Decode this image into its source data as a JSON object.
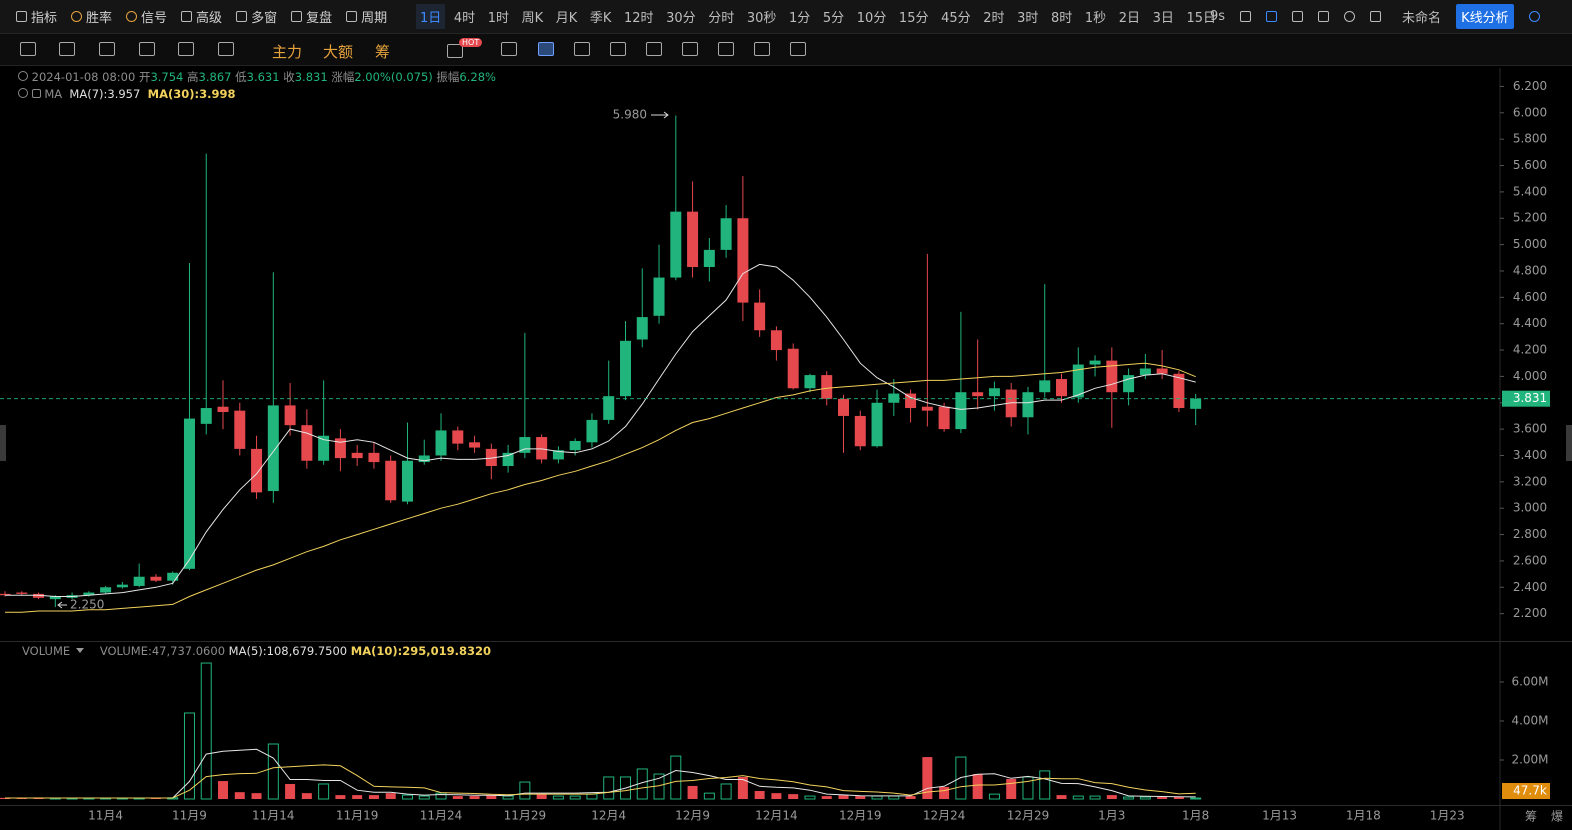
{
  "toolbar": {
    "left": [
      "指标",
      "胜率",
      "信号",
      "高级",
      "多窗",
      "复盘",
      "周期"
    ],
    "periods": [
      "1日",
      "4时",
      "1时",
      "周K",
      "月K",
      "季K",
      "12时",
      "30分",
      "分时",
      "30秒",
      "1分",
      "5分",
      "10分",
      "15分",
      "45分",
      "2时",
      "3时",
      "8时",
      "1秒",
      "2日",
      "3日",
      "15日"
    ],
    "refresh": "9s",
    "layout": "未命名",
    "analysis": "K线分析"
  },
  "drawing_bar": {
    "labels": [
      "主力",
      "大额",
      "筹"
    ],
    "badge": "HOT"
  },
  "corner": [
    "筹",
    "爆"
  ],
  "chart_data": {
    "type": "candlestick",
    "info": {
      "time": "2024-01-08 08:00",
      "open_label": "开",
      "high_label": "高",
      "low_label": "低",
      "close_label": "收",
      "change_label": "涨幅",
      "change": "2.00%(0.075)",
      "amplitude_label": "振幅",
      "amplitude": "6.28%"
    },
    "ma_title": "MA",
    "annotations": {
      "max": "5.980",
      "min": "2.250"
    },
    "up_color": "#21b57d",
    "down_color": "#e5484d",
    "categories": [
      null,
      null,
      null,
      null,
      null,
      null,
      "11月4",
      null,
      null,
      null,
      null,
      "11月9",
      null,
      null,
      null,
      null,
      "11月14",
      null,
      null,
      null,
      null,
      "11月19",
      null,
      null,
      null,
      null,
      "11月24",
      null,
      null,
      null,
      null,
      "11月29",
      null,
      null,
      null,
      null,
      "12月4",
      null,
      null,
      null,
      null,
      "12月9",
      null,
      null,
      null,
      null,
      "12月14",
      null,
      null,
      null,
      null,
      "12月19",
      null,
      null,
      null,
      null,
      "12月24",
      null,
      null,
      null,
      null,
      "12月29",
      null,
      null,
      null,
      null,
      "1月3",
      null,
      null,
      null,
      null,
      "1月8",
      null,
      null,
      null,
      null,
      "1月13",
      null,
      null,
      null,
      null,
      "1月18",
      null,
      null,
      null,
      null,
      "1月23",
      null,
      null
    ],
    "open": [
      2.35,
      2.36,
      2.35,
      2.31,
      2.32,
      2.34,
      2.36,
      2.4,
      2.41,
      2.48,
      2.45,
      2.54,
      3.64,
      3.77,
      3.74,
      3.45,
      3.13,
      3.78,
      3.63,
      3.36,
      3.53,
      3.42,
      3.42,
      3.36,
      3.05,
      3.35,
      3.4,
      3.59,
      3.5,
      3.45,
      3.32,
      3.42,
      3.54,
      3.37,
      3.44,
      3.5,
      3.67,
      3.85,
      4.28,
      4.46,
      4.75,
      5.25,
      4.83,
      4.96,
      5.2,
      4.56,
      4.35,
      4.21,
      3.91,
      4.01,
      3.83,
      3.7,
      3.47,
      3.8,
      3.87,
      3.77,
      3.77,
      3.6,
      3.88,
      3.85,
      3.9,
      3.69,
      3.88,
      3.98,
      3.84,
      4.09,
      4.12,
      3.88,
      4.01,
      4.06,
      4.02,
      3.754,
      null,
      null,
      null,
      null,
      null,
      null,
      null,
      null,
      null,
      null,
      null,
      null,
      null,
      null,
      null,
      null,
      null
    ],
    "high": [
      2.37,
      2.37,
      2.36,
      2.34,
      2.36,
      2.37,
      2.41,
      2.44,
      2.58,
      2.5,
      2.52,
      4.86,
      5.69,
      3.97,
      3.8,
      3.55,
      4.79,
      3.95,
      3.75,
      3.97,
      3.6,
      3.48,
      3.5,
      3.4,
      3.65,
      3.52,
      3.72,
      3.62,
      3.55,
      3.49,
      3.48,
      4.33,
      3.56,
      3.47,
      3.53,
      3.72,
      4.12,
      4.42,
      4.82,
      5.0,
      5.98,
      5.48,
      5.05,
      5.3,
      5.52,
      4.66,
      4.38,
      4.25,
      4.02,
      4.04,
      3.86,
      3.74,
      3.9,
      3.98,
      3.9,
      4.93,
      3.8,
      4.49,
      4.28,
      3.96,
      3.95,
      3.92,
      4.7,
      4.02,
      4.22,
      4.16,
      4.22,
      4.06,
      4.17,
      4.2,
      4.04,
      3.867,
      null,
      null,
      null,
      null,
      null,
      null,
      null,
      null,
      null,
      null,
      null,
      null,
      null,
      null,
      null,
      null,
      null
    ],
    "low": [
      2.33,
      2.34,
      2.31,
      2.25,
      2.31,
      2.33,
      2.35,
      2.39,
      2.4,
      2.44,
      2.42,
      2.53,
      3.56,
      3.6,
      3.4,
      3.07,
      3.04,
      3.55,
      3.3,
      3.33,
      3.28,
      3.32,
      3.3,
      3.04,
      3.03,
      3.33,
      3.36,
      3.44,
      3.42,
      3.22,
      3.27,
      3.38,
      3.34,
      3.34,
      3.4,
      3.46,
      3.64,
      3.82,
      4.22,
      4.4,
      4.73,
      4.75,
      4.72,
      4.9,
      4.42,
      4.3,
      4.12,
      3.9,
      3.88,
      3.78,
      3.42,
      3.44,
      3.46,
      3.7,
      3.65,
      3.62,
      3.58,
      3.57,
      3.75,
      3.74,
      3.62,
      3.56,
      3.84,
      3.8,
      3.8,
      4.0,
      3.61,
      3.78,
      3.98,
      3.98,
      3.73,
      3.631,
      null,
      null,
      null,
      null,
      null,
      null,
      null,
      null,
      null,
      null,
      null,
      null,
      null,
      null,
      null,
      null,
      null
    ],
    "close": [
      2.34,
      2.35,
      2.32,
      2.33,
      2.34,
      2.36,
      2.4,
      2.42,
      2.48,
      2.45,
      2.51,
      3.68,
      3.76,
      3.73,
      3.45,
      3.12,
      3.78,
      3.63,
      3.36,
      3.55,
      3.38,
      3.38,
      3.35,
      3.06,
      3.36,
      3.4,
      3.59,
      3.49,
      3.46,
      3.32,
      3.42,
      3.54,
      3.37,
      3.44,
      3.51,
      3.67,
      3.85,
      4.27,
      4.45,
      4.75,
      5.25,
      4.83,
      4.96,
      5.2,
      4.56,
      4.35,
      4.2,
      3.91,
      4.01,
      3.83,
      3.7,
      3.47,
      3.8,
      3.87,
      3.76,
      3.74,
      3.6,
      3.88,
      3.85,
      3.91,
      3.69,
      3.88,
      3.97,
      3.85,
      4.09,
      4.12,
      3.88,
      4.01,
      4.06,
      4.02,
      3.76,
      3.831,
      null,
      null,
      null,
      null,
      null,
      null,
      null,
      null,
      null,
      null,
      null,
      null,
      null,
      null,
      null,
      null,
      null
    ],
    "ma_series": [
      {
        "name": "MA(7):",
        "color": "#e6e6e6",
        "values": [
          2.34,
          2.34,
          2.34,
          2.33,
          2.33,
          2.34,
          2.35,
          2.36,
          2.38,
          2.4,
          2.43,
          2.61,
          2.82,
          2.99,
          3.14,
          3.26,
          3.43,
          3.6,
          3.57,
          3.52,
          3.5,
          3.52,
          3.5,
          3.44,
          3.38,
          3.36,
          3.38,
          3.37,
          3.37,
          3.38,
          3.4,
          3.45,
          3.45,
          3.43,
          3.42,
          3.45,
          3.51,
          3.62,
          3.79,
          3.98,
          4.17,
          4.34,
          4.46,
          4.58,
          4.78,
          4.85,
          4.83,
          4.73,
          4.6,
          4.45,
          4.28,
          4.1,
          3.99,
          3.92,
          3.84,
          3.8,
          3.77,
          3.75,
          3.76,
          3.78,
          3.8,
          3.8,
          3.82,
          3.82,
          3.86,
          3.91,
          3.94,
          3.98,
          4.01,
          4.02,
          3.99,
          3.957,
          null,
          null,
          null,
          null,
          null,
          null,
          null,
          null,
          null,
          null,
          null,
          null,
          null,
          null,
          null,
          null,
          null
        ]
      },
      {
        "name": "MA(30):",
        "color": "#f2d25c",
        "values": [
          2.21,
          2.21,
          2.22,
          2.22,
          2.22,
          2.23,
          2.23,
          2.24,
          2.25,
          2.26,
          2.27,
          2.33,
          2.38,
          2.43,
          2.48,
          2.53,
          2.57,
          2.62,
          2.67,
          2.71,
          2.76,
          2.8,
          2.84,
          2.88,
          2.92,
          2.96,
          3.0,
          3.03,
          3.07,
          3.11,
          3.14,
          3.18,
          3.21,
          3.25,
          3.28,
          3.32,
          3.36,
          3.41,
          3.46,
          3.52,
          3.59,
          3.65,
          3.68,
          3.72,
          3.76,
          3.8,
          3.84,
          3.86,
          3.89,
          3.91,
          3.92,
          3.93,
          3.94,
          3.95,
          3.96,
          3.97,
          3.97,
          3.98,
          3.99,
          4.0,
          4.0,
          4.01,
          4.02,
          4.03,
          4.05,
          4.07,
          4.08,
          4.09,
          4.1,
          4.08,
          4.05,
          3.998,
          null,
          null,
          null,
          null,
          null,
          null,
          null,
          null,
          null,
          null,
          null,
          null,
          null,
          null,
          null,
          null,
          null
        ]
      }
    ],
    "ylim": [
      2.0,
      6.34
    ],
    "yticks": [
      {
        "value": 2.2,
        "label": "2.200"
      },
      {
        "value": 2.4,
        "label": "2.400"
      },
      {
        "value": 2.6,
        "label": "2.600"
      },
      {
        "value": 2.8,
        "label": "2.800"
      },
      {
        "value": 3.0,
        "label": "3.000"
      },
      {
        "value": 3.2,
        "label": "3.200"
      },
      {
        "value": 3.4,
        "label": "3.400"
      },
      {
        "value": 3.6,
        "label": "3.600"
      },
      {
        "value": 3.8,
        "label": "3.800"
      },
      {
        "value": 4.0,
        "label": "4.000"
      },
      {
        "value": 4.2,
        "label": "4.200"
      },
      {
        "value": 4.4,
        "label": "4.400"
      },
      {
        "value": 4.6,
        "label": "4.600"
      },
      {
        "value": 4.8,
        "label": "4.800"
      },
      {
        "value": 5.0,
        "label": "5.000"
      },
      {
        "value": 5.2,
        "label": "5.200"
      },
      {
        "value": 5.4,
        "label": "5.400"
      },
      {
        "value": 5.6,
        "label": "5.600"
      },
      {
        "value": 5.8,
        "label": "5.800"
      },
      {
        "value": 6.0,
        "label": "6.000"
      },
      {
        "value": 6.2,
        "label": "6.200"
      }
    ],
    "volume": {
      "title": "VOLUME",
      "name": "VOLUME:",
      "value_label": "47,737.0600",
      "last_label": "47.7k",
      "values": [
        60000,
        50000,
        80000,
        50000,
        40000,
        40000,
        50000,
        30000,
        50000,
        30000,
        60000,
        4410000,
        6970000,
        920000,
        350000,
        300000,
        2820000,
        770000,
        300000,
        770000,
        200000,
        200000,
        200000,
        300000,
        200000,
        150000,
        300000,
        150000,
        150000,
        200000,
        150000,
        870000,
        250000,
        150000,
        150000,
        250000,
        1130000,
        1130000,
        1540000,
        1280000,
        2200000,
        670000,
        300000,
        770000,
        1130000,
        410000,
        300000,
        250000,
        150000,
        150000,
        200000,
        150000,
        150000,
        150000,
        150000,
        2150000,
        620000,
        2150000,
        1280000,
        250000,
        1030000,
        1130000,
        1440000,
        200000,
        150000,
        150000,
        200000,
        100000,
        100000,
        100000,
        100000,
        47737.06,
        null,
        null,
        null,
        null,
        null,
        null,
        null,
        null,
        null,
        null,
        null,
        null,
        null,
        null,
        null,
        null,
        null
      ],
      "ma_series": [
        {
          "name": "MA(5):",
          "value_label": "108,679.7500",
          "color": "#e6e6e6",
          "values": [
            50000,
            50000,
            50000,
            50000,
            50000,
            50000,
            50000,
            50000,
            50000,
            50000,
            50000,
            900000,
            2300000,
            2450000,
            2500000,
            2550000,
            2100000,
            1000000,
            1000000,
            950000,
            950000,
            450000,
            350000,
            350000,
            250000,
            200000,
            230000,
            220000,
            190000,
            190000,
            170000,
            300000,
            300000,
            300000,
            300000,
            330000,
            350000,
            560000,
            840000,
            1060000,
            1460000,
            1360000,
            1200000,
            1000000,
            1000000,
            650000,
            600000,
            570000,
            450000,
            250000,
            210000,
            170000,
            160000,
            160000,
            160000,
            550000,
            650000,
            1100000,
            1270000,
            1290000,
            1060000,
            1160000,
            1030000,
            800000,
            790000,
            620000,
            430000,
            160000,
            140000,
            130000,
            120000,
            108679.75,
            null,
            null,
            null,
            null,
            null,
            null,
            null,
            null,
            null,
            null,
            null,
            null,
            null,
            null,
            null,
            null,
            null
          ]
        },
        {
          "name": "MA(10):",
          "value_label": "295,019.8320",
          "color": "#f2d25c",
          "values": [
            50000,
            50000,
            50000,
            50000,
            50000,
            50000,
            50000,
            50000,
            50000,
            50000,
            50000,
            450000,
            1150000,
            1250000,
            1300000,
            1320000,
            1600000,
            1650000,
            1700000,
            1750000,
            1700000,
            1200000,
            650000,
            620000,
            600000,
            570000,
            330000,
            300000,
            280000,
            240000,
            220000,
            250000,
            250000,
            250000,
            250000,
            250000,
            340000,
            430000,
            570000,
            680000,
            900000,
            950000,
            1050000,
            1100000,
            1200000,
            1050000,
            980000,
            880000,
            720000,
            620000,
            430000,
            390000,
            360000,
            300000,
            200000,
            360000,
            430000,
            630000,
            720000,
            720000,
            800000,
            900000,
            1060000,
            1040000,
            1040000,
            840000,
            790000,
            600000,
            460000,
            380000,
            260000,
            295019.832,
            null,
            null,
            null,
            null,
            null,
            null,
            null,
            null,
            null,
            null,
            null,
            null,
            null,
            null,
            null,
            null,
            null
          ]
        }
      ],
      "ylim": [
        0,
        8050000
      ],
      "yticks": [
        {
          "value": 2000000,
          "label": "2.00M"
        },
        {
          "value": 4000000,
          "label": "4.00M"
        },
        {
          "value": 6000000,
          "label": "6.00M"
        }
      ]
    }
  }
}
